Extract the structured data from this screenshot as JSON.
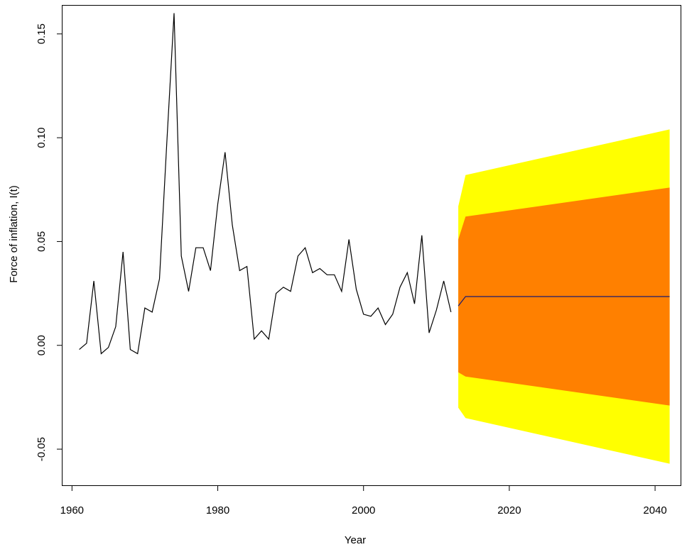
{
  "chart_data": {
    "type": "line",
    "title": "",
    "xlabel": "Year",
    "ylabel": "Force of inflation, I(t)",
    "xlim": [
      1958.7,
      2043.5
    ],
    "ylim": [
      -0.0674,
      0.1636
    ],
    "grid": false,
    "x_ticks": [
      1960,
      1980,
      2000,
      2020,
      2040
    ],
    "x_tick_labels": [
      "1960",
      "1980",
      "2000",
      "2020",
      "2040"
    ],
    "y_ticks": [
      -0.05,
      0.0,
      0.05,
      0.1,
      0.15
    ],
    "y_tick_labels": [
      "-0.05",
      "0.00",
      "0.05",
      "0.10",
      "0.15"
    ],
    "colors": {
      "history": "#000000",
      "forecast": "#191970",
      "band_95": "#FFFF00",
      "band_80": "#FF8000"
    },
    "series": [
      {
        "role": "history",
        "x": [
          1961,
          1962,
          1963,
          1964,
          1965,
          1966,
          1967,
          1968,
          1969,
          1970,
          1971,
          1972,
          1973,
          1974,
          1975,
          1976,
          1977,
          1978,
          1979,
          1980,
          1981,
          1982,
          1983,
          1984,
          1985,
          1986,
          1987,
          1988,
          1989,
          1990,
          1991,
          1992,
          1993,
          1994,
          1995,
          1996,
          1997,
          1998,
          1999,
          2000,
          2001,
          2002,
          2003,
          2004,
          2005,
          2006,
          2007,
          2008,
          2009,
          2010,
          2011,
          2012
        ],
        "values": [
          -0.002,
          0.001,
          0.031,
          -0.004,
          -0.001,
          0.009,
          0.045,
          -0.002,
          -0.004,
          0.018,
          0.016,
          0.032,
          0.097,
          0.16,
          0.043,
          0.026,
          0.047,
          0.047,
          0.036,
          0.068,
          0.093,
          0.058,
          0.036,
          0.038,
          0.003,
          0.007,
          0.003,
          0.025,
          0.028,
          0.026,
          0.043,
          0.047,
          0.035,
          0.037,
          0.034,
          0.034,
          0.026,
          0.051,
          0.027,
          0.015,
          0.014,
          0.018,
          0.01,
          0.015,
          0.028,
          0.035,
          0.02,
          0.053,
          0.006,
          0.017,
          0.031,
          0.016
        ]
      },
      {
        "role": "forecast",
        "x": [
          2013,
          2014,
          2042
        ],
        "values": [
          0.019,
          0.0235,
          0.0235
        ]
      }
    ],
    "bands": [
      {
        "level": "95",
        "x": [
          2013,
          2014,
          2042
        ],
        "lower": [
          -0.03,
          -0.035,
          -0.057
        ],
        "upper": [
          0.067,
          0.082,
          0.104
        ]
      },
      {
        "level": "80",
        "x": [
          2013,
          2014,
          2042
        ],
        "lower": [
          -0.013,
          -0.015,
          -0.029
        ],
        "upper": [
          0.051,
          0.062,
          0.076
        ]
      }
    ]
  }
}
